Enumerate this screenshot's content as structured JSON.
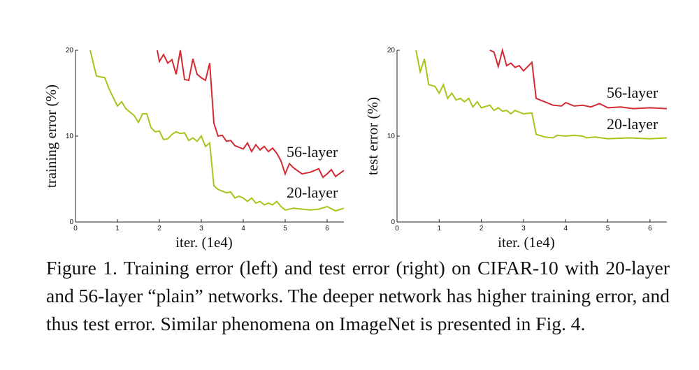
{
  "chart_data": [
    {
      "type": "line",
      "y_label": "training error (%)",
      "x_label": "iter. (1e4)",
      "xlim": [
        0,
        6.4
      ],
      "ylim": [
        0,
        20
      ],
      "xticks": [
        0,
        1,
        2,
        3,
        4,
        5,
        6
      ],
      "yticks": [
        0,
        10,
        20
      ],
      "series": [
        {
          "name": "56-layer",
          "color": "#d42a33",
          "x": [
            1.95,
            2.0,
            2.1,
            2.2,
            2.3,
            2.4,
            2.5,
            2.6,
            2.7,
            2.8,
            2.9,
            3.0,
            3.1,
            3.2,
            3.3,
            3.4,
            3.5,
            3.6,
            3.7,
            3.8,
            3.9,
            4.0,
            4.1,
            4.2,
            4.3,
            4.4,
            4.5,
            4.6,
            4.7,
            4.8,
            4.9,
            5.0,
            5.1,
            5.2,
            5.4,
            5.6,
            5.8,
            5.9,
            6.0,
            6.1,
            6.2,
            6.4
          ],
          "values": [
            20,
            18.7,
            19.5,
            18.5,
            18.9,
            17.2,
            20,
            16.6,
            16.5,
            19,
            17.2,
            16.8,
            16.5,
            18.5,
            11.5,
            10,
            10.1,
            9.4,
            9.5,
            8.9,
            8.7,
            8.5,
            9.2,
            8.2,
            9,
            8.4,
            8.8,
            8.2,
            8.6,
            8.0,
            7.1,
            5.6,
            6.8,
            6.3,
            5.6,
            5.8,
            6.2,
            5.2,
            5.6,
            6.1,
            5.3,
            6.0
          ]
        },
        {
          "name": "20-layer",
          "color": "#a9c41c",
          "x": [
            0.35,
            0.5,
            0.7,
            0.8,
            1.0,
            1.1,
            1.2,
            1.4,
            1.5,
            1.6,
            1.7,
            1.8,
            1.9,
            2.0,
            2.1,
            2.2,
            2.3,
            2.4,
            2.5,
            2.6,
            2.7,
            2.8,
            2.9,
            3.0,
            3.1,
            3.2,
            3.3,
            3.4,
            3.5,
            3.6,
            3.7,
            3.8,
            3.9,
            4.0,
            4.1,
            4.2,
            4.3,
            4.4,
            4.5,
            4.6,
            4.7,
            4.8,
            4.9,
            5.0,
            5.2,
            5.4,
            5.6,
            5.8,
            6.0,
            6.2,
            6.4
          ],
          "values": [
            20,
            17,
            16.8,
            15.5,
            13.5,
            14,
            13.2,
            12.4,
            11.6,
            12.6,
            12.6,
            11,
            10.5,
            10.6,
            9.6,
            9.7,
            10.2,
            10.5,
            10.3,
            10.4,
            9.5,
            9.8,
            9.4,
            10,
            8.8,
            9.2,
            4.2,
            3.8,
            3.6,
            3.4,
            3.5,
            2.8,
            3,
            2.8,
            2.4,
            2.8,
            2.2,
            2.4,
            2.0,
            2.2,
            2.0,
            2.4,
            1.8,
            1.4,
            1.6,
            1.5,
            1.4,
            1.5,
            1.8,
            1.3,
            1.6
          ]
        }
      ]
    },
    {
      "type": "line",
      "y_label": "test error (%)",
      "x_label": "iter. (1e4)",
      "xlim": [
        0,
        6.4
      ],
      "ylim": [
        0,
        20
      ],
      "xticks": [
        0,
        1,
        2,
        3,
        4,
        5,
        6
      ],
      "yticks": [
        0,
        10,
        20
      ],
      "series": [
        {
          "name": "56-layer",
          "color": "#d42a33",
          "x": [
            2.2,
            2.3,
            2.4,
            2.5,
            2.6,
            2.7,
            2.8,
            2.9,
            3.0,
            3.1,
            3.2,
            3.3,
            3.5,
            3.7,
            3.9,
            4.0,
            4.2,
            4.4,
            4.6,
            4.8,
            5.0,
            5.3,
            5.6,
            6.0,
            6.4
          ],
          "values": [
            20,
            19.8,
            18.1,
            20,
            18.2,
            18.5,
            18.0,
            18.2,
            17.6,
            18.1,
            18.6,
            14.4,
            14.0,
            13.6,
            13.5,
            13.9,
            13.5,
            13.6,
            13.4,
            13.8,
            13.3,
            13.4,
            13.2,
            13.3,
            13.2
          ]
        },
        {
          "name": "20-layer",
          "color": "#a9c41c",
          "x": [
            0.45,
            0.55,
            0.65,
            0.75,
            0.9,
            1.0,
            1.1,
            1.2,
            1.3,
            1.4,
            1.5,
            1.6,
            1.7,
            1.8,
            1.9,
            2.0,
            2.2,
            2.3,
            2.4,
            2.5,
            2.6,
            2.7,
            2.8,
            3.0,
            3.2,
            3.3,
            3.5,
            3.7,
            3.8,
            4.0,
            4.2,
            4.4,
            4.5,
            4.7,
            5.0,
            5.5,
            6.0,
            6.4
          ],
          "values": [
            20,
            17.5,
            19,
            16,
            15.8,
            15,
            16,
            14.4,
            15,
            14.2,
            14.4,
            14.0,
            14.4,
            13.4,
            14.0,
            13.3,
            13.6,
            13.0,
            13.3,
            12.9,
            13.0,
            12.6,
            13.0,
            12.6,
            12.7,
            10.2,
            9.9,
            9.8,
            10.1,
            10.0,
            10.1,
            10.0,
            9.8,
            9.9,
            9.7,
            9.8,
            9.7,
            9.8
          ]
        }
      ]
    }
  ],
  "caption": "Figure 1. Training error (left) and test error (right) on CIFAR-10 with 20-layer and 56-layer “plain” networks. The deeper network has higher training error, and thus test error. Similar phenomena on ImageNet is presented in Fig. 4."
}
